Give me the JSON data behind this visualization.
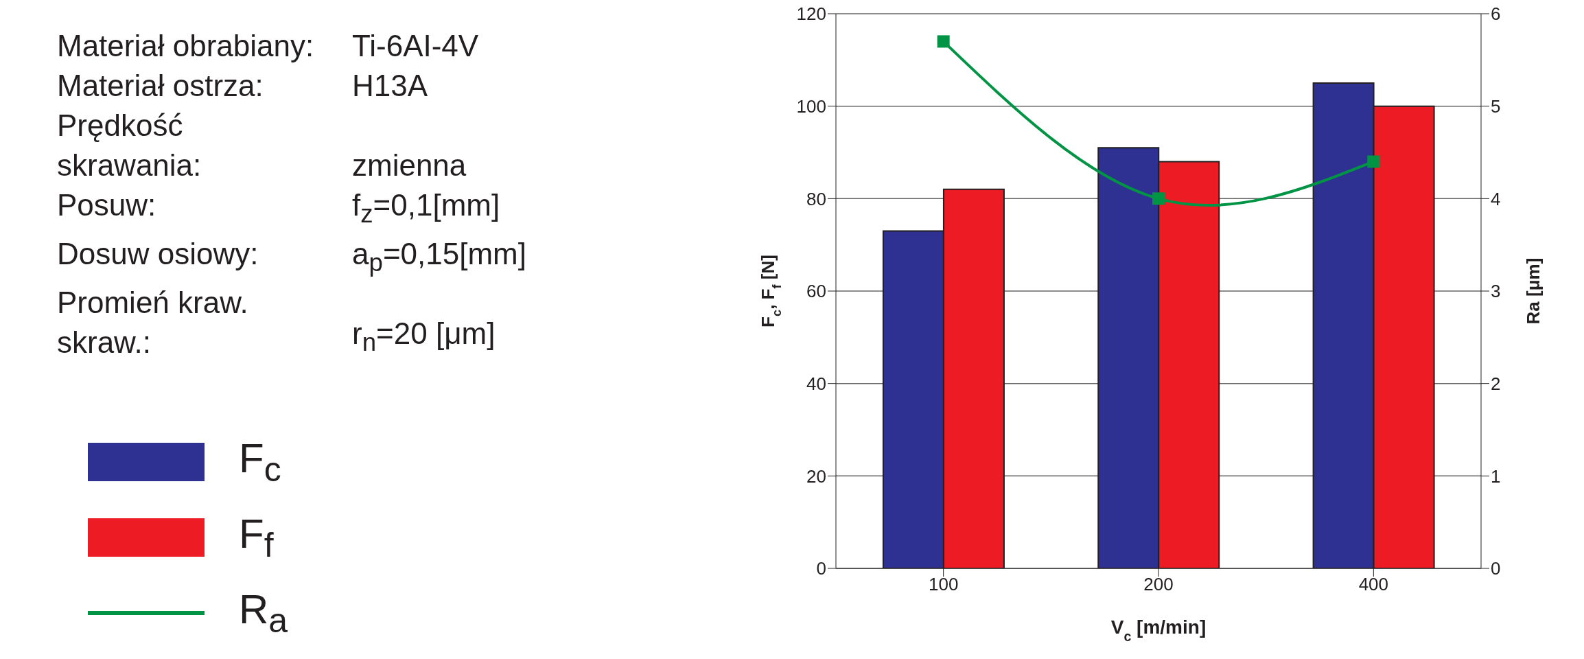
{
  "chart_data": {
    "type": "bar",
    "categories": [
      "100",
      "200",
      "400"
    ],
    "series": [
      {
        "name": "F$_{c}$",
        "color": "#2e3192",
        "values": [
          73,
          91,
          105
        ]
      },
      {
        "name": "F$_{f}$",
        "color": "#ed1c24",
        "values": [
          82,
          88,
          100
        ]
      },
      {
        "name": "R$_{a}$",
        "color": "#009444",
        "type": "line",
        "axis": "y2",
        "values": [
          5.7,
          4.0,
          4.4
        ]
      }
    ],
    "xlabel": "V$_{c}$ [m/min]",
    "ylabel": "F$_{c}$, F$_{f}$ [N]",
    "y2label": "Ra [μm]",
    "ylim": [
      0,
      120
    ],
    "yticks": [
      0,
      20,
      40,
      60,
      80,
      100,
      120
    ],
    "y2lim": [
      0,
      6
    ],
    "y2ticks": [
      0,
      1,
      2,
      3,
      4,
      5,
      6
    ],
    "grid": "y",
    "legend": "left",
    "marker": "square",
    "annotations": [
      "Materiał obrabiany:",
      "Ti-6AI-4V",
      "Materiał ostrza:",
      "H13A",
      "Prędkość skrawania:",
      "zmienna",
      "Posuw:",
      "f$_{z}$=0,1[mm]",
      "Dosuw osiowy:",
      "a$_{p}$=0,15[mm]",
      "Promień kraw. skraw.:",
      "r$_{n}$=20 [μm]"
    ]
  }
}
